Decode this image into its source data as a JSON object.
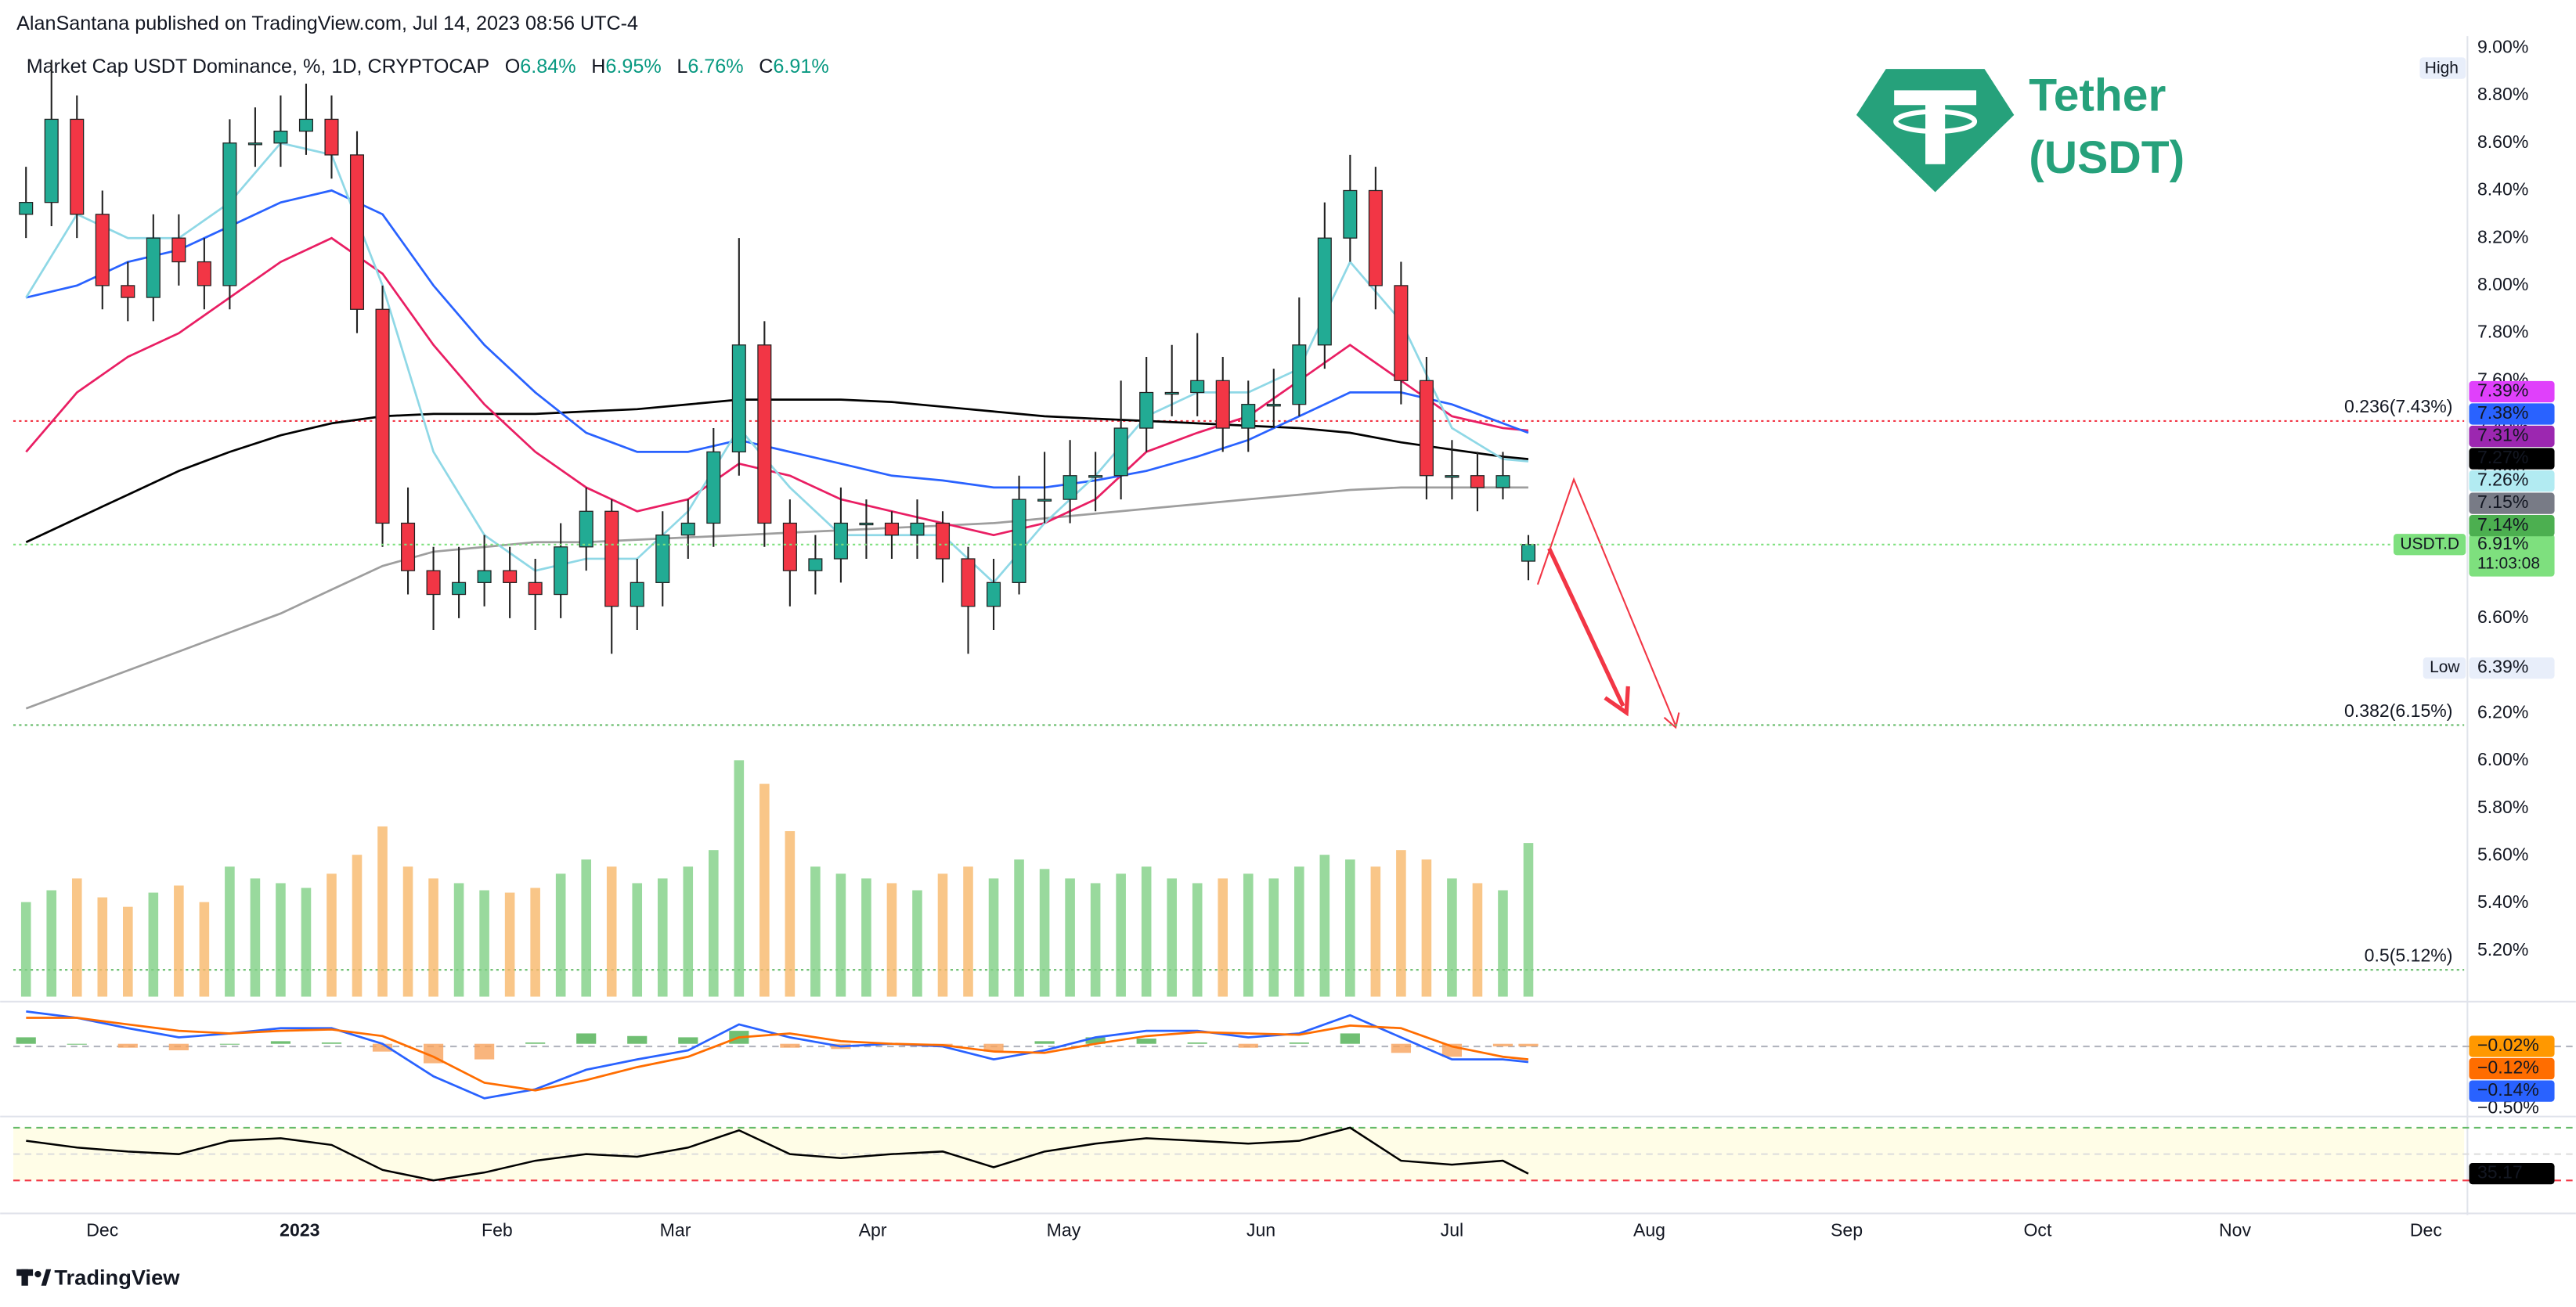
{
  "header": {
    "publisher": "AlanSantana published on TradingView.com, Jul 14, 2023 08:56 UTC-4"
  },
  "chart_data": {
    "type": "candlestick",
    "title": "Market Cap USDT Dominance, %, 1D, CRYPTOCAP",
    "ohlc_legend": [
      {
        "key": "O",
        "label": "6.84%"
      },
      {
        "key": "H",
        "label": "6.95%"
      },
      {
        "key": "L",
        "label": "6.76%"
      },
      {
        "key": "C",
        "label": "6.91%"
      }
    ],
    "x": [
      0,
      4,
      8,
      12,
      16,
      20,
      24,
      28,
      32,
      36,
      40,
      44,
      48,
      52,
      56,
      60,
      64,
      68,
      72,
      76,
      80,
      84,
      88,
      92,
      96,
      100,
      104,
      108,
      112,
      116,
      120,
      124,
      128,
      132,
      136,
      140,
      144,
      148,
      152,
      156,
      160,
      164,
      168,
      172,
      176,
      180,
      184,
      188,
      192,
      196,
      200,
      204,
      208,
      212,
      216,
      220,
      224,
      228,
      232,
      236
    ],
    "open": [
      8.3,
      8.35,
      8.7,
      8.3,
      8.0,
      7.95,
      8.2,
      8.1,
      8.0,
      8.6,
      8.6,
      8.65,
      8.7,
      8.55,
      7.9,
      7.0,
      6.8,
      6.7,
      6.75,
      6.8,
      6.75,
      6.7,
      6.9,
      7.05,
      6.65,
      6.75,
      6.95,
      7.0,
      7.3,
      7.75,
      7.0,
      6.8,
      6.85,
      7.0,
      7.0,
      6.95,
      7.0,
      6.85,
      6.65,
      6.75,
      7.1,
      7.1,
      7.2,
      7.2,
      7.4,
      7.55,
      7.55,
      7.6,
      7.4,
      7.5,
      7.5,
      7.75,
      8.2,
      8.4,
      8.0,
      7.6,
      7.2,
      7.2,
      7.15,
      6.84
    ],
    "high": [
      8.5,
      8.95,
      8.8,
      8.4,
      8.1,
      8.3,
      8.3,
      8.2,
      8.7,
      8.75,
      8.8,
      8.85,
      8.8,
      8.65,
      8.0,
      7.15,
      6.9,
      6.9,
      6.95,
      6.9,
      6.85,
      7.0,
      7.15,
      7.1,
      6.85,
      7.05,
      7.1,
      7.4,
      8.2,
      7.85,
      7.1,
      6.95,
      7.15,
      7.1,
      7.05,
      7.1,
      7.05,
      6.9,
      6.85,
      7.2,
      7.3,
      7.35,
      7.3,
      7.6,
      7.7,
      7.75,
      7.8,
      7.7,
      7.6,
      7.65,
      7.95,
      8.35,
      8.55,
      8.5,
      8.1,
      7.7,
      7.35,
      7.3,
      7.3,
      6.95
    ],
    "low": [
      8.2,
      8.25,
      8.2,
      7.9,
      7.85,
      7.85,
      8.0,
      7.9,
      7.9,
      8.5,
      8.5,
      8.55,
      8.45,
      7.8,
      6.9,
      6.7,
      6.55,
      6.6,
      6.65,
      6.6,
      6.55,
      6.6,
      6.8,
      6.45,
      6.55,
      6.65,
      6.85,
      6.9,
      7.2,
      6.9,
      6.65,
      6.7,
      6.75,
      6.85,
      6.85,
      6.85,
      6.75,
      6.45,
      6.55,
      6.7,
      7.0,
      7.0,
      7.05,
      7.1,
      7.3,
      7.45,
      7.45,
      7.3,
      7.3,
      7.4,
      7.45,
      7.65,
      8.1,
      7.9,
      7.5,
      7.1,
      7.1,
      7.05,
      7.1,
      6.76
    ],
    "close": [
      8.35,
      8.7,
      8.3,
      8.0,
      7.95,
      8.2,
      8.1,
      8.0,
      8.6,
      8.6,
      8.65,
      8.7,
      8.55,
      7.9,
      7.0,
      6.8,
      6.7,
      6.75,
      6.8,
      6.75,
      6.7,
      6.9,
      7.05,
      6.65,
      6.75,
      6.95,
      7.0,
      7.3,
      7.75,
      7.0,
      6.8,
      6.85,
      7.0,
      7.0,
      6.95,
      7.0,
      6.85,
      6.65,
      6.75,
      7.1,
      7.1,
      7.2,
      7.2,
      7.4,
      7.55,
      7.55,
      7.6,
      7.4,
      7.5,
      7.5,
      7.75,
      8.2,
      8.4,
      8.0,
      7.6,
      7.2,
      7.2,
      7.15,
      7.2,
      6.91
    ],
    "up_color": "#22ab94",
    "down_color": "#f23645",
    "xlim": [
      -2,
      383
    ],
    "xticks": [
      {
        "value": 12,
        "label": "Dec"
      },
      {
        "value": 43,
        "label": "2023"
      },
      {
        "value": 74,
        "label": "Feb"
      },
      {
        "value": 102,
        "label": "Mar"
      },
      {
        "value": 133,
        "label": "Apr"
      },
      {
        "value": 163,
        "label": "May"
      },
      {
        "value": 194,
        "label": "Jun"
      },
      {
        "value": 224,
        "label": "Jul"
      },
      {
        "value": 255,
        "label": "Aug"
      },
      {
        "value": 286,
        "label": "Sep"
      },
      {
        "value": 316,
        "label": "Oct"
      },
      {
        "value": 347,
        "label": "Nov"
      },
      {
        "value": 377,
        "label": "Dec"
      }
    ],
    "ylim": [
      5.0,
      9.05
    ],
    "yticks": [
      {
        "value": 5.2,
        "label": "5.20%"
      },
      {
        "value": 5.4,
        "label": "5.40%"
      },
      {
        "value": 5.6,
        "label": "5.60%"
      },
      {
        "value": 5.8,
        "label": "5.80%"
      },
      {
        "value": 6.0,
        "label": "6.00%"
      },
      {
        "value": 6.2,
        "label": "6.20%"
      },
      {
        "value": 6.4,
        "label": "6.40%"
      },
      {
        "value": 6.6,
        "label": "6.60%"
      },
      {
        "value": 6.8,
        "label": "6.80%"
      },
      {
        "value": 7.0,
        "label": "7.00%"
      },
      {
        "value": 7.2,
        "label": "7.20%"
      },
      {
        "value": 7.4,
        "label": "7.40%"
      },
      {
        "value": 7.6,
        "label": "7.60%"
      },
      {
        "value": 7.8,
        "label": "7.80%"
      },
      {
        "value": 8.0,
        "label": "8.00%"
      },
      {
        "value": 8.2,
        "label": "8.20%"
      },
      {
        "value": 8.4,
        "label": "8.40%"
      },
      {
        "value": 8.6,
        "label": "8.60%"
      },
      {
        "value": 8.8,
        "label": "8.80%"
      },
      {
        "value": 9.0,
        "label": "9.00%"
      }
    ],
    "grid": false,
    "moving_averages": {
      "x": [
        0,
        8,
        16,
        24,
        32,
        40,
        48,
        56,
        64,
        72,
        80,
        88,
        96,
        104,
        112,
        120,
        128,
        136,
        144,
        152,
        160,
        168,
        176,
        184,
        192,
        200,
        208,
        216,
        224,
        232,
        236
      ],
      "series": [
        {
          "color": "#9e9e9e",
          "values": [
            6.22,
            6.3,
            6.38,
            6.46,
            6.54,
            6.62,
            6.72,
            6.82,
            6.88,
            6.9,
            6.92,
            6.92,
            6.93,
            6.94,
            6.95,
            6.96,
            6.97,
            6.98,
            6.99,
            7.0,
            7.02,
            7.04,
            7.06,
            7.08,
            7.1,
            7.12,
            7.14,
            7.15,
            7.15,
            7.15,
            7.15
          ]
        },
        {
          "color": "#000000",
          "values": [
            6.92,
            7.02,
            7.12,
            7.22,
            7.3,
            7.37,
            7.42,
            7.45,
            7.46,
            7.46,
            7.46,
            7.47,
            7.48,
            7.5,
            7.52,
            7.52,
            7.52,
            7.51,
            7.49,
            7.47,
            7.45,
            7.44,
            7.43,
            7.42,
            7.41,
            7.4,
            7.38,
            7.34,
            7.31,
            7.28,
            7.27
          ]
        },
        {
          "color": "#e91e63",
          "values": [
            7.3,
            7.55,
            7.7,
            7.8,
            7.95,
            8.1,
            8.2,
            8.05,
            7.75,
            7.5,
            7.3,
            7.15,
            7.05,
            7.1,
            7.25,
            7.2,
            7.1,
            7.05,
            7.0,
            6.95,
            7.0,
            7.1,
            7.3,
            7.38,
            7.45,
            7.6,
            7.75,
            7.6,
            7.45,
            7.4,
            7.39
          ]
        },
        {
          "color": "#2962ff",
          "values": [
            7.95,
            8.0,
            8.1,
            8.15,
            8.25,
            8.35,
            8.4,
            8.3,
            8.0,
            7.75,
            7.55,
            7.38,
            7.3,
            7.3,
            7.35,
            7.3,
            7.25,
            7.2,
            7.18,
            7.15,
            7.15,
            7.18,
            7.22,
            7.28,
            7.35,
            7.45,
            7.55,
            7.55,
            7.5,
            7.42,
            7.38
          ]
        },
        {
          "color": "#8fd8e6",
          "values": [
            7.95,
            8.3,
            8.2,
            8.2,
            8.35,
            8.6,
            8.55,
            8.0,
            7.3,
            6.95,
            6.8,
            6.85,
            6.85,
            7.05,
            7.4,
            7.15,
            6.95,
            6.95,
            6.95,
            6.75,
            7.0,
            7.2,
            7.45,
            7.55,
            7.55,
            7.65,
            8.1,
            7.85,
            7.4,
            7.27,
            7.26
          ]
        }
      ]
    },
    "levels": [
      {
        "value": 7.43,
        "label": "0.236(7.43%)",
        "color": "#f23645"
      },
      {
        "value": 6.15,
        "label": "0.382(6.15%)",
        "color": "#66bb6a"
      },
      {
        "value": 5.12,
        "label": "0.5(5.12%)",
        "color": "#66bb6a"
      }
    ],
    "price_tags": [
      {
        "value": 7.39,
        "label": "7.39%",
        "color": "#e040fb",
        "text_color": "#ffffff"
      },
      {
        "value": 7.38,
        "label": "7.38%",
        "color": "#2962ff",
        "text_color": "#ffffff"
      },
      {
        "value": 7.31,
        "label": "7.31%",
        "color": "#9c27b0",
        "text_color": "#ffffff"
      },
      {
        "value": 7.27,
        "label": "7.27%",
        "color": "#000000",
        "text_color": "#ffffff"
      },
      {
        "value": 7.26,
        "label": "7.26%",
        "color": "#b2ebf2",
        "text_color": "#131722"
      },
      {
        "value": 7.15,
        "label": "7.15%",
        "color": "#787b86",
        "text_color": "#ffffff"
      },
      {
        "value": 7.14,
        "label": "7.14%",
        "color": "#4caf50",
        "text_color": "#ffffff"
      }
    ],
    "last_price": {
      "symbol": "USDT.D",
      "label": "6.91%",
      "countdown": "11:03:08",
      "color": "#7ee07e"
    },
    "high_tag": {
      "name": "High"
    },
    "low_tag": {
      "name": "Low",
      "value": 6.39,
      "label": "6.39%"
    },
    "volume": {
      "ylim": [
        0,
        100
      ],
      "up_color": "#7fcf84",
      "down_color": "#f7b86a",
      "values": [
        40,
        45,
        50,
        42,
        38,
        44,
        47,
        40,
        55,
        50,
        48,
        46,
        52,
        60,
        72,
        55,
        50,
        48,
        45,
        44,
        46,
        52,
        58,
        55,
        48,
        50,
        55,
        62,
        100,
        90,
        70,
        55,
        52,
        50,
        48,
        45,
        52,
        55,
        50,
        58,
        54,
        50,
        48,
        52,
        55,
        50,
        48,
        50,
        52,
        50,
        55,
        60,
        58,
        55,
        62,
        58,
        50,
        48,
        45,
        65
      ]
    },
    "macd": {
      "ylim": [
        -0.51,
        0.3
      ],
      "yticks": [
        {
          "value": -0.5,
          "label": "−0.50%"
        }
      ],
      "macd_line": {
        "color": "#2962ff",
        "values": [
          0.25,
          0.2,
          0.12,
          0.05,
          0.08,
          0.12,
          0.12,
          0.0,
          -0.25,
          -0.42,
          -0.35,
          -0.2,
          -0.12,
          -0.05,
          0.15,
          0.05,
          -0.02,
          0.0,
          -0.02,
          -0.12,
          -0.05,
          0.05,
          0.1,
          0.1,
          0.05,
          0.08,
          0.22,
          0.05,
          -0.12,
          -0.12,
          -0.14
        ]
      },
      "signal_line": {
        "color": "#ff6d00",
        "values": [
          0.2,
          0.2,
          0.15,
          0.1,
          0.08,
          0.1,
          0.11,
          0.06,
          -0.1,
          -0.3,
          -0.36,
          -0.28,
          -0.18,
          -0.1,
          0.05,
          0.08,
          0.02,
          0.0,
          -0.01,
          -0.06,
          -0.07,
          0.0,
          0.06,
          0.09,
          0.08,
          0.07,
          0.14,
          0.12,
          -0.02,
          -0.1,
          -0.12
        ]
      },
      "histogram": {
        "up_color": "#4caf50",
        "down_color": "#f7a35c",
        "values": [
          0.05,
          0.0,
          -0.03,
          -0.05,
          0,
          0.02,
          0.01,
          -0.06,
          -0.15,
          -0.12,
          0.01,
          0.08,
          0.06,
          0.05,
          0.1,
          -0.03,
          -0.04,
          0,
          -0.01,
          -0.06,
          0.02,
          0.05,
          0.04,
          0.01,
          -0.03,
          0.01,
          0.08,
          -0.07,
          -0.1,
          -0.02,
          -0.02
        ]
      },
      "tags": [
        {
          "value": -0.02,
          "label": "−0.02%",
          "color": "#ff9800"
        },
        {
          "value": -0.12,
          "label": "−0.12%",
          "color": "#ff6d00"
        },
        {
          "value": -0.14,
          "label": "−0.14%",
          "color": "#2962ff"
        }
      ]
    },
    "rsi": {
      "ylim": [
        10,
        76
      ],
      "levels": [
        70,
        50,
        30
      ],
      "color": "#000000",
      "value_label": "35.17",
      "values": [
        60,
        55,
        52,
        50,
        60,
        62,
        57,
        38,
        30,
        36,
        45,
        50,
        48,
        55,
        68,
        50,
        47,
        50,
        52,
        40,
        52,
        58,
        62,
        60,
        58,
        60,
        70,
        45,
        42,
        45,
        35.17
      ]
    },
    "watermark": {
      "name": "Tether",
      "ticker": "(USDT)"
    }
  },
  "footer": {
    "brand": "TradingView"
  }
}
